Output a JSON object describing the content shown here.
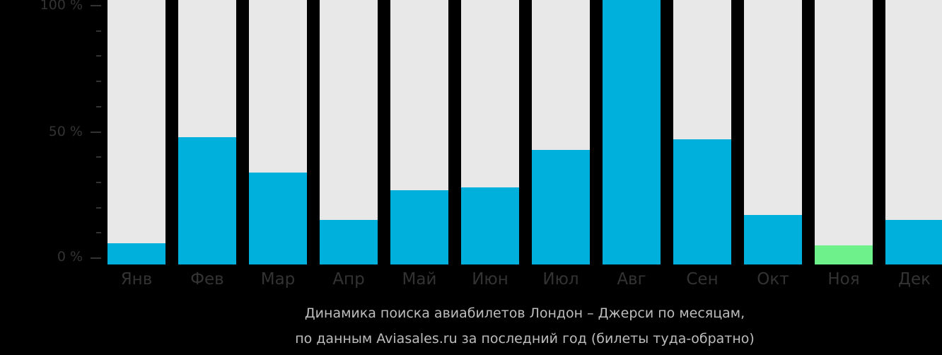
{
  "chart_data": {
    "type": "bar",
    "title": "Динамика поиска авиабилетов Лондон – Джерси по месяцам,",
    "subtitle": "по данным Aviasales.ru за последний год (билеты туда-обратно)",
    "categories": [
      "Янв",
      "Фев",
      "Мар",
      "Апр",
      "Май",
      "Июн",
      "Июл",
      "Авг",
      "Сен",
      "Окт",
      "Ноя",
      "Дек"
    ],
    "values": [
      6,
      48,
      34,
      15,
      27,
      28,
      43,
      100,
      47,
      17,
      5,
      15
    ],
    "ylim": [
      0,
      100
    ],
    "yticks": [
      "0 %",
      "50 %",
      "100 %"
    ],
    "xlabel": "",
    "ylabel": "",
    "grid": false,
    "colors": {
      "bar": "#00b0dc",
      "min_bar": "#6ef08a",
      "track": "#e8e8e8"
    },
    "highlight_min_index": 10
  },
  "axis": {
    "y0": "0 %",
    "y50": "50 %",
    "y100": "100 %"
  },
  "caption": {
    "line1": "Динамика поиска авиабилетов Лондон – Джерси по месяцам,",
    "line2": "по данным Aviasales.ru за последний год (билеты туда-обратно)"
  }
}
